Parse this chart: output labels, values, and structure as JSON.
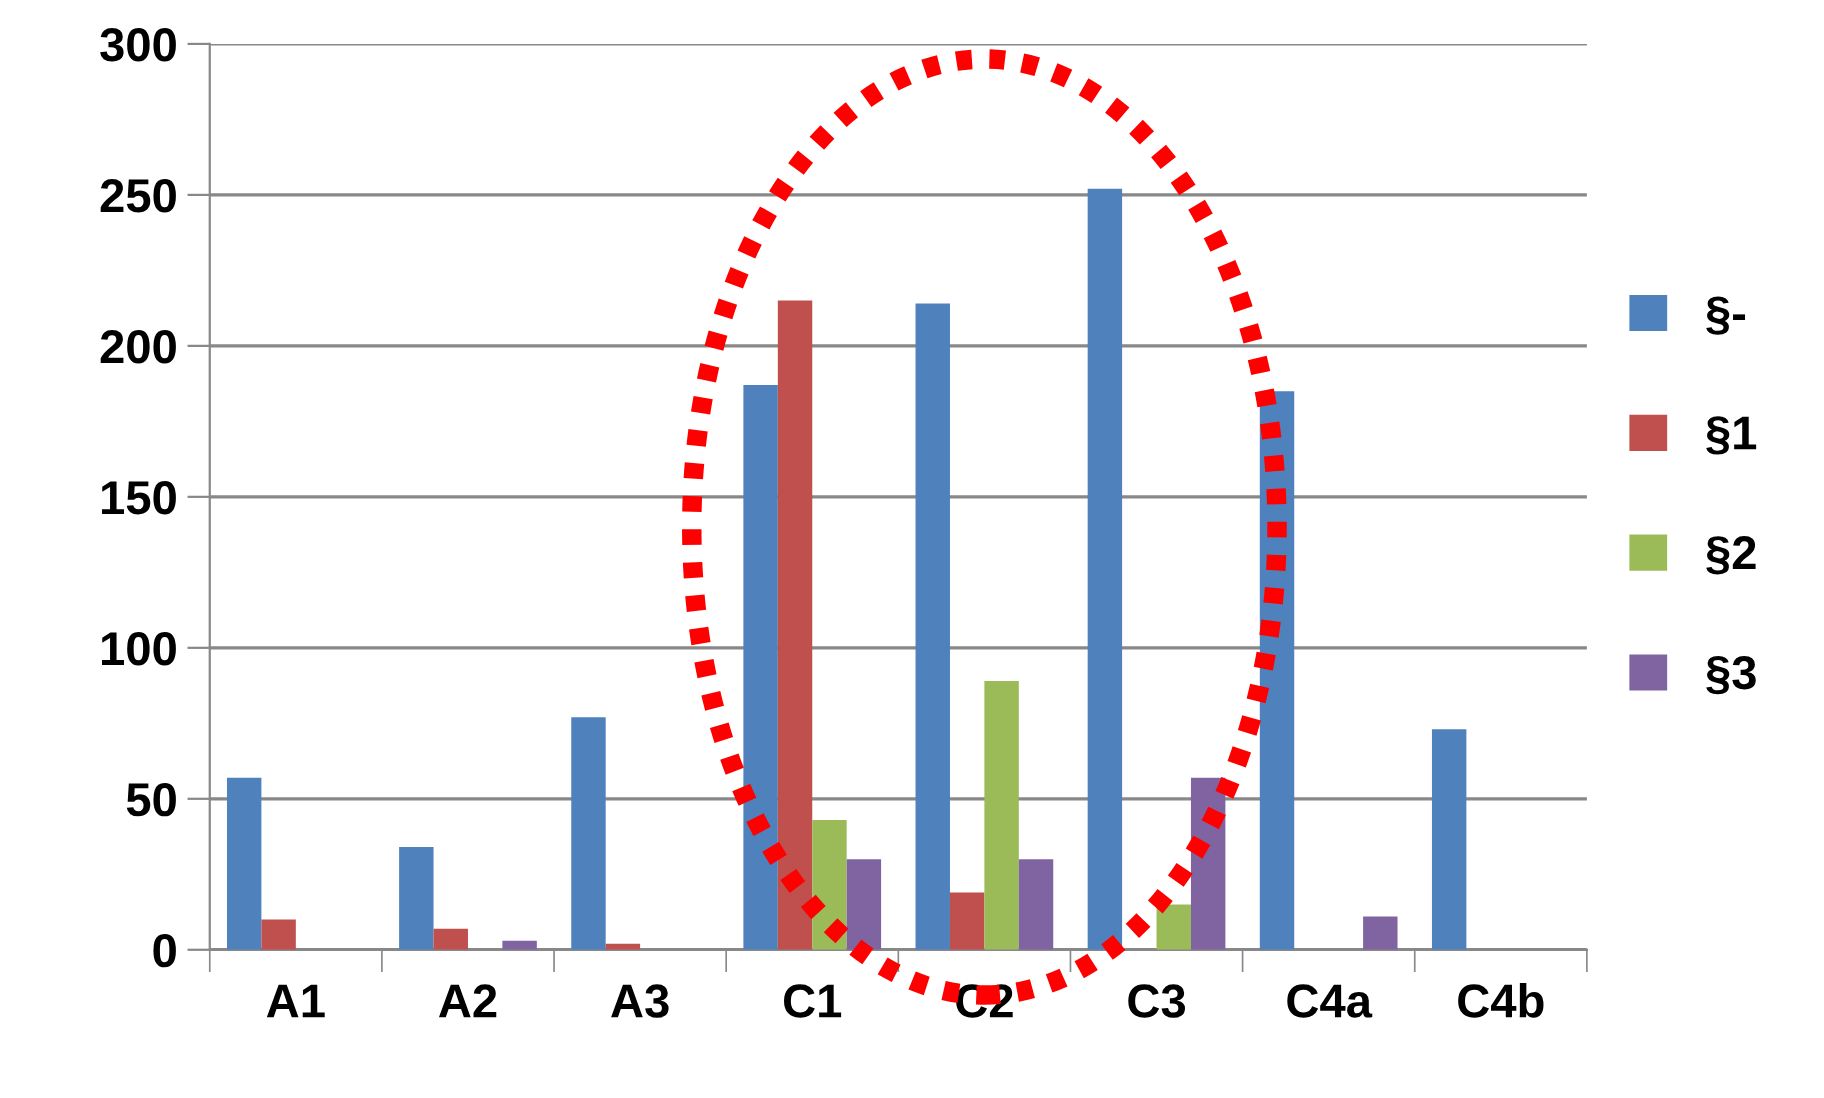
{
  "chart_data": {
    "type": "bar",
    "categories": [
      "A1",
      "A2",
      "A3",
      "C1",
      "C2",
      "C3",
      "C4a",
      "C4b"
    ],
    "series": [
      {
        "name": "§-",
        "color": "#4f81bd",
        "values": [
          57,
          34,
          77,
          187,
          214,
          252,
          185,
          73
        ]
      },
      {
        "name": "§1",
        "color": "#c0504d",
        "values": [
          10,
          7,
          2,
          215,
          19,
          0,
          0,
          0
        ]
      },
      {
        "name": "§2",
        "color": "#9bbb59",
        "values": [
          0,
          0,
          0,
          43,
          89,
          15,
          null,
          0
        ]
      },
      {
        "name": "§3",
        "color": "#8064a2",
        "values": [
          0,
          3,
          0,
          30,
          30,
          57,
          11,
          0
        ]
      }
    ],
    "ylim": [
      0,
      300
    ],
    "yticks": [
      0,
      50,
      100,
      150,
      200,
      250,
      300
    ],
    "grid": "y",
    "legend": "right"
  }
}
